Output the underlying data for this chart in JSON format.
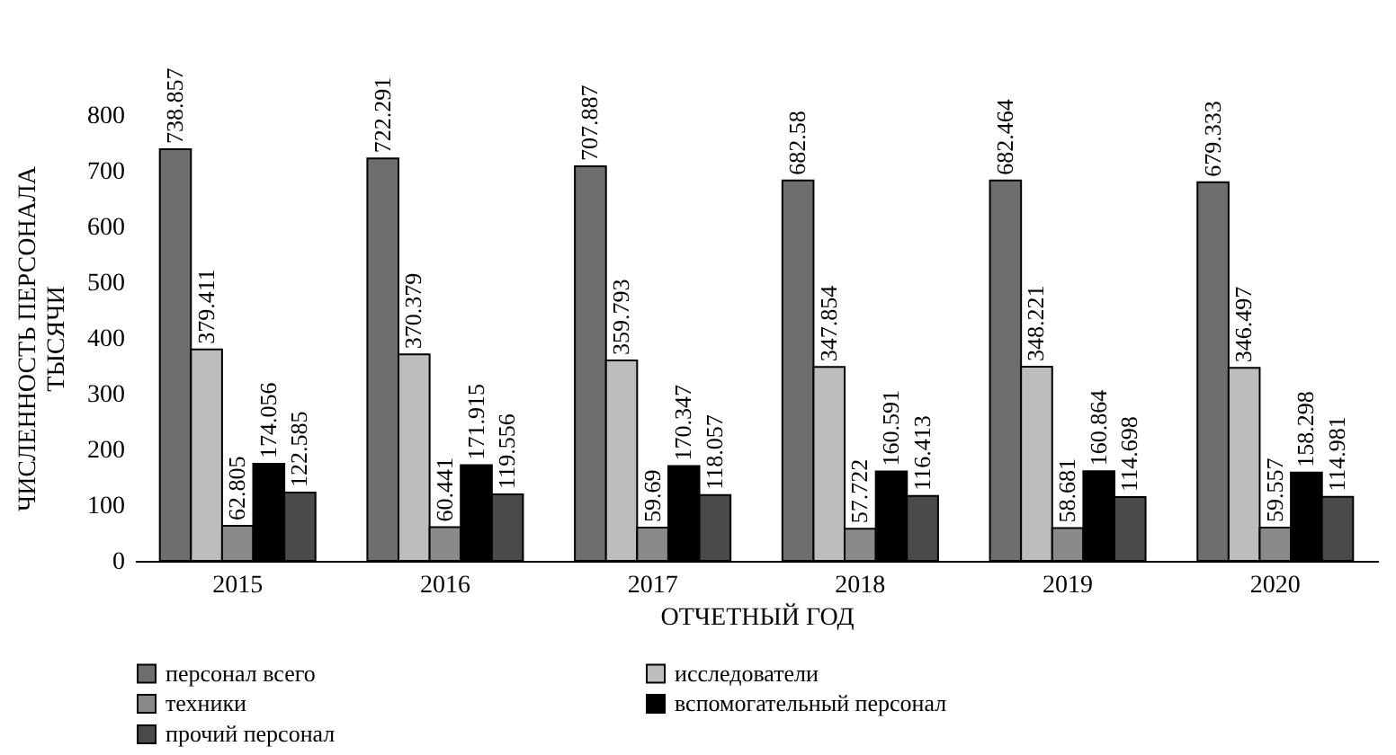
{
  "chart_data": {
    "type": "bar",
    "xlabel": "ОТЧЕТНЫЙ ГОД",
    "ylabel": "ЧИСЛЕННОСТЬ ПЕРСОНАЛА\nТЫСЯЧИ",
    "categories": [
      "2015",
      "2016",
      "2017",
      "2018",
      "2019",
      "2020"
    ],
    "series": [
      {
        "name": "персонал всего",
        "color": "#6e6e6e",
        "values": [
          738.857,
          722.291,
          707.887,
          682.58,
          682.464,
          679.333
        ]
      },
      {
        "name": "исследователи",
        "color": "#bdbdbd",
        "values": [
          379.411,
          370.379,
          359.793,
          347.854,
          348.221,
          346.497
        ]
      },
      {
        "name": "техники",
        "color": "#8a8a8a",
        "values": [
          62.805,
          60.441,
          59.69,
          57.722,
          58.681,
          59.557
        ]
      },
      {
        "name": "вспомогательный персонал",
        "color": "#000000",
        "values": [
          174.056,
          171.915,
          170.347,
          160.591,
          160.864,
          158.298
        ]
      },
      {
        "name": "прочий персонал",
        "color": "#4a4a4a",
        "values": [
          122.585,
          119.556,
          118.057,
          116.413,
          114.698,
          114.981
        ]
      }
    ],
    "ylim": [
      0,
      800
    ],
    "yticks": [
      0,
      100,
      200,
      300,
      400,
      500,
      600,
      700,
      800
    ],
    "data_labels": true,
    "legend": "bottom"
  }
}
